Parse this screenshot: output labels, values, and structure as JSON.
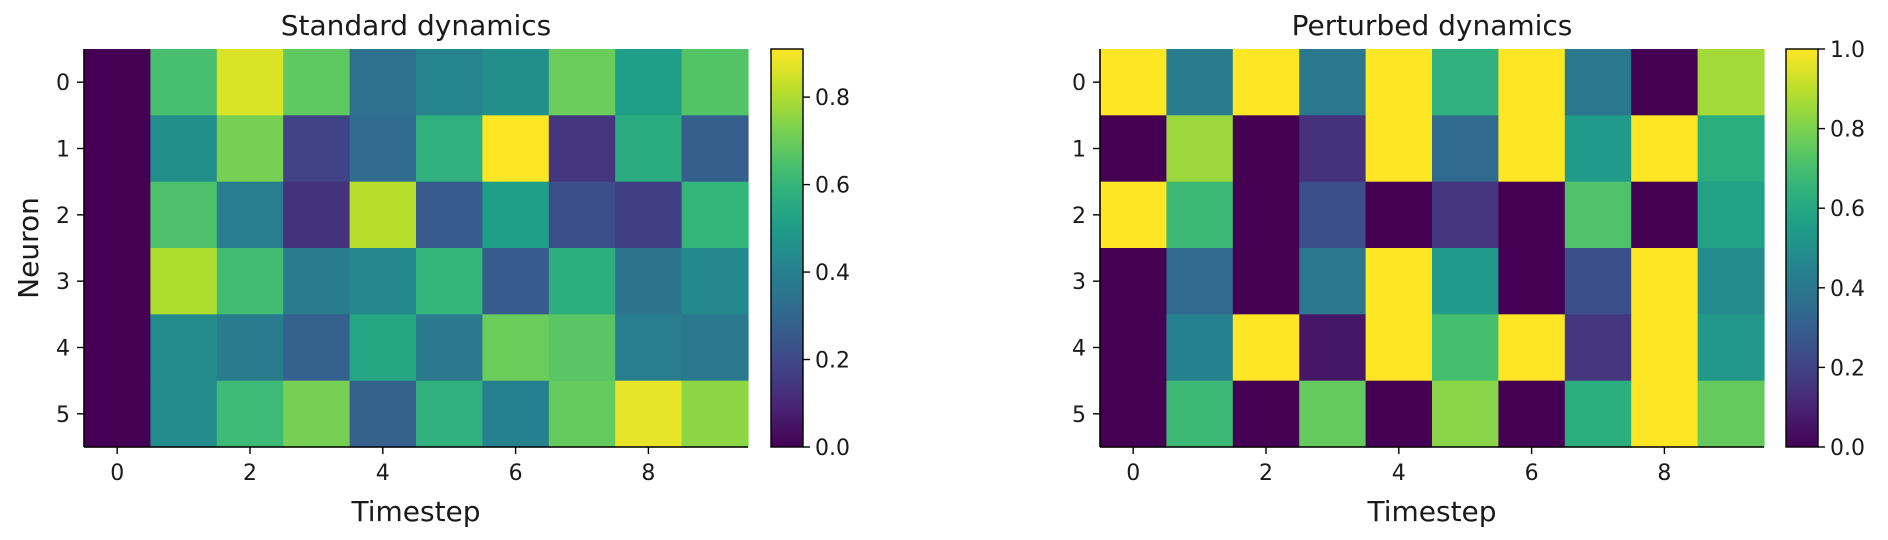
{
  "chart_data": [
    {
      "type": "heatmap",
      "title": "Standard dynamics",
      "xlabel": "Timestep",
      "ylabel": "Neuron",
      "x_ticks": [
        0,
        2,
        4,
        6,
        8
      ],
      "y_ticks": [
        0,
        1,
        2,
        3,
        4,
        5
      ],
      "colormap": "viridis",
      "vmin": 0.0,
      "vmax": 0.91,
      "colorbar_ticks": [
        0.0,
        0.2,
        0.4,
        0.6,
        0.8
      ],
      "colorbar_tick_labels": [
        "0.0",
        "0.2",
        "0.4",
        "0.6",
        "0.8"
      ],
      "values": [
        [
          0.0,
          0.64,
          0.86,
          0.68,
          0.34,
          0.41,
          0.45,
          0.7,
          0.51,
          0.66
        ],
        [
          0.0,
          0.45,
          0.72,
          0.18,
          0.32,
          0.58,
          0.91,
          0.14,
          0.56,
          0.27
        ],
        [
          0.0,
          0.65,
          0.39,
          0.13,
          0.81,
          0.26,
          0.51,
          0.22,
          0.17,
          0.6
        ],
        [
          0.0,
          0.8,
          0.63,
          0.38,
          0.43,
          0.6,
          0.26,
          0.57,
          0.35,
          0.43
        ],
        [
          0.0,
          0.44,
          0.38,
          0.28,
          0.54,
          0.37,
          0.7,
          0.67,
          0.39,
          0.37
        ],
        [
          0.0,
          0.44,
          0.62,
          0.72,
          0.28,
          0.58,
          0.4,
          0.69,
          0.88,
          0.75
        ]
      ]
    },
    {
      "type": "heatmap",
      "title": "Perturbed dynamics",
      "xlabel": "Timestep",
      "ylabel": "",
      "x_ticks": [
        0,
        2,
        4,
        6,
        8
      ],
      "y_ticks": [
        0,
        1,
        2,
        3,
        4,
        5
      ],
      "colormap": "viridis",
      "vmin": 0.0,
      "vmax": 1.0,
      "colorbar_ticks": [
        0.0,
        0.2,
        0.4,
        0.6,
        0.8,
        1.0
      ],
      "colorbar_tick_labels": [
        "0.0",
        "0.2",
        "0.4",
        "0.6",
        "0.8",
        "1.0"
      ],
      "values": [
        [
          1.0,
          0.42,
          1.0,
          0.4,
          1.0,
          0.64,
          1.0,
          0.4,
          0.0,
          0.86
        ],
        [
          0.0,
          0.85,
          0.0,
          0.14,
          1.0,
          0.34,
          1.0,
          0.54,
          1.0,
          0.62
        ],
        [
          1.0,
          0.68,
          0.0,
          0.24,
          0.0,
          0.16,
          0.0,
          0.72,
          0.0,
          0.57
        ],
        [
          0.0,
          0.34,
          0.0,
          0.4,
          1.0,
          0.54,
          0.0,
          0.24,
          1.0,
          0.48
        ],
        [
          0.0,
          0.44,
          1.0,
          0.06,
          1.0,
          0.7,
          1.0,
          0.16,
          1.0,
          0.53
        ],
        [
          0.0,
          0.68,
          0.0,
          0.76,
          0.0,
          0.82,
          0.0,
          0.62,
          1.0,
          0.76
        ]
      ]
    }
  ]
}
